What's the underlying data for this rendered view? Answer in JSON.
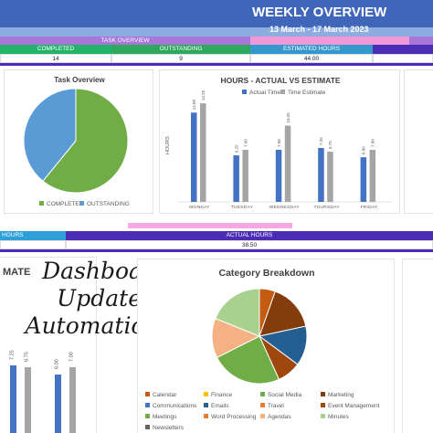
{
  "header": {
    "title": "WEEKLY OVERVIEW",
    "date_range": "13 March - 17 March 2023"
  },
  "task_overview_header": {
    "label": "TASK OVERVIEW",
    "columns": [
      {
        "label": "COMPLETED",
        "value": "14"
      },
      {
        "label": "OUTSTANDING",
        "value": "9"
      },
      {
        "label": "ESTIMATED HOURS",
        "value": "44.00"
      }
    ]
  },
  "summary2": {
    "hours_label": "HOURS",
    "actual_hours_label": "ACTUAL HOURS",
    "actual_hours_value": "38.50"
  },
  "pie_chart": {
    "title": "Task Overview",
    "legend": [
      "COMPLETED",
      "OUTSTANDING"
    ]
  },
  "bar_chart": {
    "title": "HOURS - ACTUAL VS ESTIMATE",
    "legend": [
      "Actual Time",
      "Time Estimate"
    ],
    "ylabel": "HOURS"
  },
  "lower_left_chart": {
    "title_fragment": "MATE",
    "labels": [
      "7.25",
      "6.75",
      "6.00",
      "7.00"
    ]
  },
  "category_chart": {
    "title": "Category Breakdown",
    "legend": [
      "Calendar",
      "Finance",
      "Social Media",
      "Marketing",
      "Communications",
      "Emails",
      "Travel",
      "Event Management",
      "Meetings",
      "Word Processing",
      "Agendas",
      "Minutes",
      "Newsletters"
    ]
  },
  "callout": {
    "lines": [
      "Dashboard",
      "Updates",
      "Automatically"
    ]
  },
  "colors": {
    "banner": "#3f66b8",
    "task_overview": "#a875d9",
    "completed": "#24b36b",
    "estimated": "#3399cc",
    "outstanding": "#4a2db4",
    "actual_time": "#4472c4",
    "time_estimate": "#a5a5a5",
    "pie_completed": "#70ad47",
    "pie_outstanding": "#5b9bd5"
  },
  "chart_data": [
    {
      "type": "pie",
      "title": "Task Overview",
      "labels": [
        "COMPLETED",
        "OUTSTANDING"
      ],
      "values": [
        14,
        9
      ],
      "legend_position": "bottom"
    },
    {
      "type": "bar",
      "title": "HOURS - ACTUAL VS ESTIMATE",
      "categories": [
        "MONDAY",
        "TUESDAY",
        "WEDNESDAY",
        "THURSDAY",
        "FRIDAY"
      ],
      "series": [
        {
          "name": "Actual Time",
          "values": [
            12.0,
            6.25,
            7.0,
            7.25,
            6.0
          ],
          "labels": [
            "12.00",
            "6.25",
            "7.00",
            "7.25",
            "6.00"
          ]
        },
        {
          "name": "Time Estimate",
          "values": [
            13.25,
            7.0,
            10.25,
            6.75,
            7.0
          ],
          "labels": [
            "13.25",
            "7.00",
            "10.25",
            "6.75",
            "7.00"
          ]
        }
      ],
      "ylabel": "HOURS",
      "ylim": [
        0,
        14
      ],
      "legend_position": "top"
    },
    {
      "type": "pie",
      "title": "Category Breakdown",
      "labels": [
        "Calendar",
        "Finance",
        "Social Media",
        "Marketing",
        "Communications",
        "Emails",
        "Travel",
        "Event Management",
        "Meetings",
        "Word Processing",
        "Agendas",
        "Minutes",
        "Newsletters"
      ],
      "values": [
        2,
        0,
        0,
        6,
        0,
        5,
        0,
        3,
        9,
        0,
        5,
        7,
        0
      ],
      "slice_colors": [
        "#c55a11",
        "#ffc000",
        "#70ad47",
        "#843c0c",
        "#4472c4",
        "#255e91",
        "#ed7d31",
        "#9e480e",
        "#70ad47",
        "#ed7d31",
        "#f4b183",
        "#a9d18e",
        "#636363"
      ],
      "legend_position": "bottom"
    }
  ]
}
